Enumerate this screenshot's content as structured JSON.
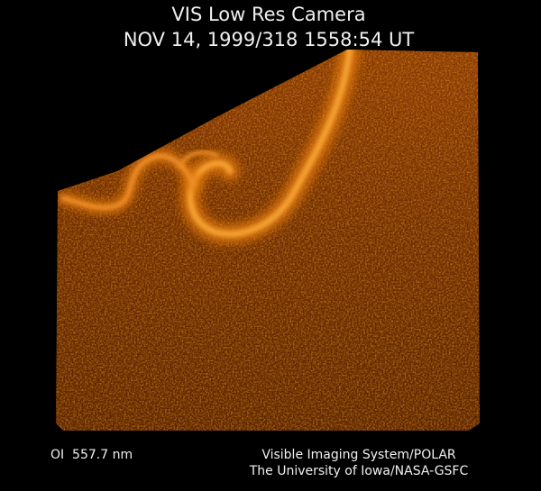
{
  "header": {
    "title": "VIS Low Res Camera",
    "timestamp": "NOV 14, 1999/318 1558:54 UT"
  },
  "footer": {
    "filter": "OI  557.7 nm",
    "instrument": "Visible Imaging System/POLAR",
    "credit": "The University of Iowa/NASA-GSFC"
  }
}
